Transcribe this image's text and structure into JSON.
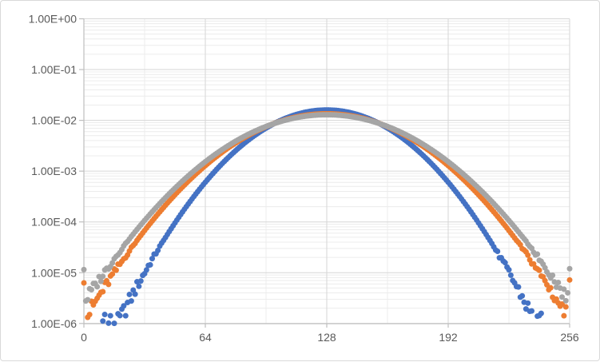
{
  "window": {
    "background": "#FFFFFF",
    "frame_border_color": "#D9D9D9"
  },
  "colors": {
    "axis_line": "#BFBFBF",
    "major_grid": "#D6D6D6",
    "minor_grid": "#ECECEC",
    "tick_label": "#595959",
    "series_blue": "#4472C4",
    "series_orange": "#ED7D31",
    "series_gray": "#A5A5A5"
  },
  "chart_data": {
    "type": "scatter",
    "title": "",
    "legend": null,
    "x_axis": {
      "scale": "linear",
      "min": 0,
      "max": 256,
      "tick_values": [
        0,
        64,
        128,
        192,
        256
      ],
      "tick_labels": [
        "0",
        "64",
        "128",
        "192",
        "256"
      ],
      "minor_gridline_step": 32
    },
    "y_axis": {
      "scale": "log",
      "min": 1e-06,
      "max": 1,
      "tick_values": [
        1,
        0.1,
        0.01,
        0.001,
        0.0001,
        1e-05,
        1e-06
      ],
      "tick_labels": [
        "1.00E+00",
        "1.00E-01",
        "1.00E-02",
        "1.00E-03",
        "1.00E-04",
        "1.00E-05",
        "1.00E-06"
      ],
      "minor_gridlines_per_decade": true
    },
    "grid": {
      "show_minor": true,
      "show_major": true
    },
    "series": [
      {
        "name": "blue",
        "color": "#4472C4",
        "marker_radius": 3.5,
        "model": {
          "shape": "gaussian",
          "mean": 128,
          "sigma": 25,
          "peak": 0.016
        },
        "anchor_points": {
          "x64": 0.0006,
          "x128": 0.016,
          "x192": 0.0006
        },
        "visible_x_range": [
          13,
          246
        ],
        "outliers": []
      },
      {
        "name": "orange",
        "color": "#ED7D31",
        "marker_radius": 3.5,
        "model": {
          "shape": "gaussian",
          "mean": 128,
          "sigma": 29.5,
          "peak": 0.0135
        },
        "anchor_points": {
          "x0": 1.1e-06,
          "x64": 0.00128,
          "x128": 0.0135,
          "x192": 0.00128,
          "x256": 1.1e-06
        },
        "visible_x_range": [
          0,
          256
        ],
        "outliers": [
          [
            0,
            6.3e-06
          ],
          [
            256,
            7.2e-06
          ]
        ]
      },
      {
        "name": "gray",
        "color": "#A5A5A5",
        "marker_radius": 3.5,
        "model": {
          "shape": "gaussian",
          "mean": 128,
          "sigma": 31,
          "peak": 0.0129
        },
        "anchor_points": {
          "x0": 2.5e-06,
          "x64": 0.00153,
          "x128": 0.0129,
          "x192": 0.00153,
          "x256": 2.5e-06
        },
        "visible_x_range": [
          0,
          256
        ],
        "outliers": [
          [
            0,
            1.15e-05
          ],
          [
            256,
            1.2e-05
          ]
        ]
      }
    ],
    "noise": {
      "amp_max_decades": 0.22,
      "onset_log10": -4.3,
      "full_log10": -6.2,
      "floor_min_p": 1.5e-07
    }
  }
}
